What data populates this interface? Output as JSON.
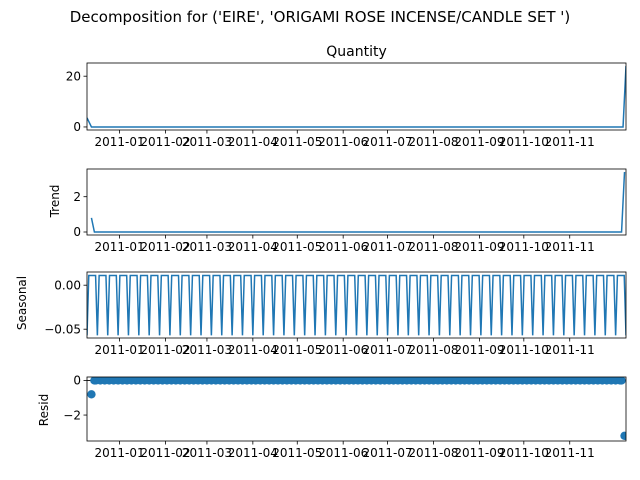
{
  "figure": {
    "suptitle": "Decomposition for ('EIRE', 'ORIGAMI ROSE INCENSE/CANDLE SET ')"
  },
  "chart_data": [
    {
      "type": "line",
      "title": "Quantity",
      "xlabel": "",
      "ylabel": "",
      "xlim": [
        "2010-12-10",
        "2011-12-09"
      ],
      "ylim": [
        -1.2,
        25.2
      ],
      "yticks": [
        0,
        20
      ],
      "x_tick_labels": [
        "2011-01",
        "2011-02",
        "2011-03",
        "2011-04",
        "2011-05",
        "2011-06",
        "2011-07",
        "2011-08",
        "2011-09",
        "2011-10",
        "2011-11"
      ],
      "color": "#1f77b4",
      "series": [
        {
          "x": [
            "2010-12-10",
            "2010-12-13",
            "2011-12-07",
            "2011-12-09"
          ],
          "y": [
            3.6,
            0,
            0,
            24
          ]
        }
      ]
    },
    {
      "type": "line",
      "title": "",
      "xlabel": "",
      "ylabel": "Trend",
      "xlim": [
        "2010-12-10",
        "2011-12-09"
      ],
      "ylim": [
        -0.17,
        3.57
      ],
      "yticks": [
        0,
        2
      ],
      "x_tick_labels": [
        "2011-01",
        "2011-02",
        "2011-03",
        "2011-04",
        "2011-05",
        "2011-06",
        "2011-07",
        "2011-08",
        "2011-09",
        "2011-10",
        "2011-11"
      ],
      "color": "#1f77b4",
      "series": [
        {
          "x": [
            "2010-12-13",
            "2010-12-15",
            "2011-12-06",
            "2011-12-08"
          ],
          "y": [
            0.8,
            0,
            0,
            3.4
          ]
        }
      ]
    },
    {
      "type": "line",
      "title": "",
      "xlabel": "",
      "ylabel": "Seasonal",
      "xlim": [
        "2010-12-10",
        "2011-12-09"
      ],
      "ylim": [
        -0.06,
        0.015
      ],
      "yticks": [
        0.0,
        -0.05
      ],
      "ytick_labels": [
        "0.00",
        "−0.05"
      ],
      "x_tick_labels": [
        "2011-01",
        "2011-02",
        "2011-03",
        "2011-04",
        "2011-05",
        "2011-06",
        "2011-07",
        "2011-08",
        "2011-09",
        "2011-10",
        "2011-11"
      ],
      "color": "#1f77b4",
      "seasonal_pattern": {
        "period_days": 7,
        "high": 0.011,
        "low": -0.057,
        "start": "2010-12-10",
        "end": "2011-12-09"
      }
    },
    {
      "type": "scatter",
      "title": "",
      "xlabel": "",
      "ylabel": "Resid",
      "xlim": [
        "2010-12-10",
        "2011-12-09"
      ],
      "ylim": [
        -3.5,
        0.2
      ],
      "yticks": [
        0,
        -2
      ],
      "ytick_labels": [
        "0",
        "−2"
      ],
      "x_tick_labels": [
        "2011-01",
        "2011-02",
        "2011-03",
        "2011-04",
        "2011-05",
        "2011-06",
        "2011-07",
        "2011-08",
        "2011-09",
        "2011-10",
        "2011-11"
      ],
      "color": "#1f77b4",
      "baseline": 0,
      "points": [
        {
          "x": "2010-12-13",
          "y": -0.8
        },
        {
          "x": "2010-12-15",
          "y": 0
        },
        {
          "x": "2011-12-06",
          "y": 0
        },
        {
          "x": "2011-12-08",
          "y": -3.2
        }
      ],
      "regular_points": {
        "start": "2010-12-16",
        "end": "2011-12-05",
        "every_days": 3,
        "y": 0
      }
    }
  ]
}
